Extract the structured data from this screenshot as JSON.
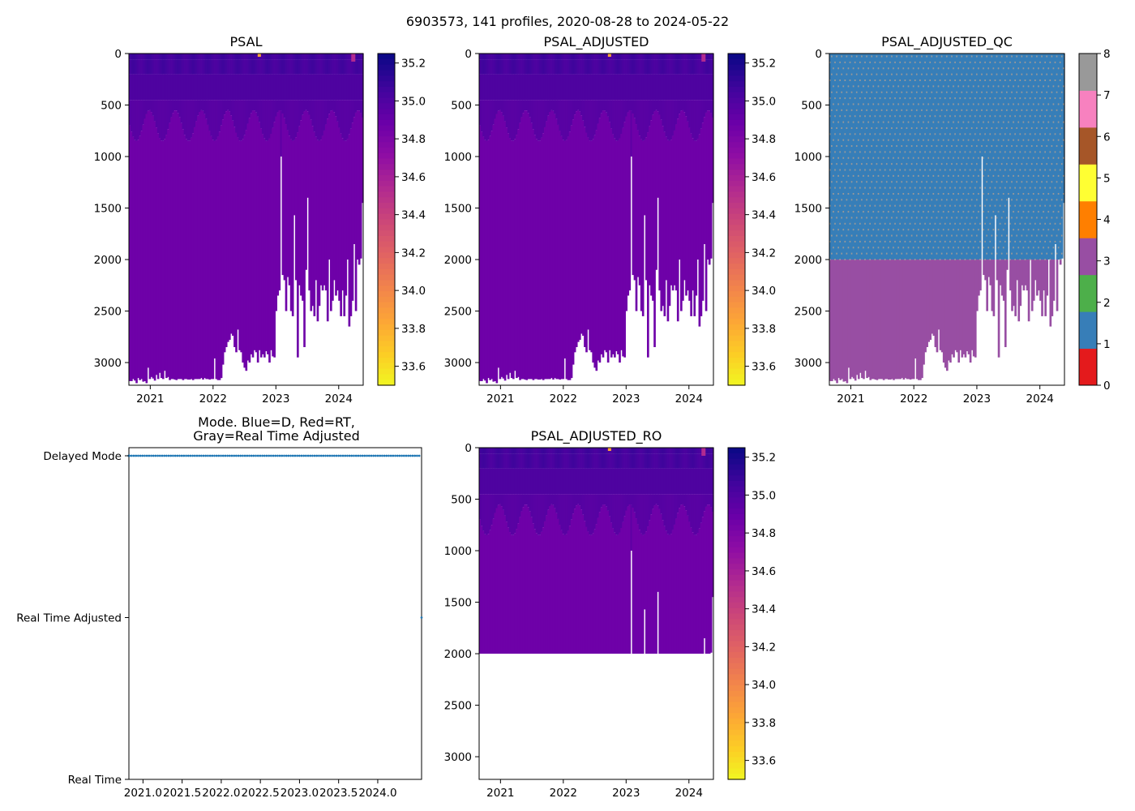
{
  "figure": {
    "suptitle": "6903573, 141 profiles, 2020-08-28 to 2024-05-22"
  },
  "colors": {
    "plasma_r": [
      "#0d0887",
      "#41049d",
      "#6a00a8",
      "#8f0da4",
      "#b12a90",
      "#cc4778",
      "#e16462",
      "#f2844b",
      "#fca636",
      "#fcce25",
      "#f0f921"
    ],
    "qc_classes": [
      "#e41a1c",
      "#377eb8",
      "#4daf4a",
      "#984ea3",
      "#ff7f00",
      "#ffff33",
      "#a65628",
      "#f781bf",
      "#999999"
    ],
    "mode_dot": "#1f77b4"
  },
  "chart_data": [
    {
      "id": "psal",
      "type": "heatmap",
      "title": "PSAL",
      "xticks": [
        "2021",
        "2022",
        "2023",
        "2024"
      ],
      "xtick_years": [
        2021,
        2022,
        2023,
        2024
      ],
      "xlim": [
        2020.66,
        2024.39
      ],
      "yticks": [
        "0",
        "500",
        "1000",
        "1500",
        "2000",
        "2500",
        "3000"
      ],
      "ylim": [
        3220,
        0
      ],
      "colorbar": {
        "ticks": [
          "33.6",
          "33.8",
          "34.0",
          "34.2",
          "34.4",
          "34.6",
          "34.8",
          "35.0",
          "35.2"
        ],
        "range": [
          33.5,
          35.25
        ]
      },
      "profile_depth_profile": "full"
    },
    {
      "id": "psal_adjusted",
      "type": "heatmap",
      "title": "PSAL_ADJUSTED",
      "xticks": [
        "2021",
        "2022",
        "2023",
        "2024"
      ],
      "xtick_years": [
        2021,
        2022,
        2023,
        2024
      ],
      "xlim": [
        2020.66,
        2024.39
      ],
      "yticks": [
        "0",
        "500",
        "1000",
        "1500",
        "2000",
        "2500",
        "3000"
      ],
      "ylim": [
        3220,
        0
      ],
      "colorbar": {
        "ticks": [
          "33.6",
          "33.8",
          "34.0",
          "34.2",
          "34.4",
          "34.6",
          "34.8",
          "35.0",
          "35.2"
        ],
        "range": [
          33.5,
          35.25
        ]
      },
      "profile_depth_profile": "full"
    },
    {
      "id": "psal_adjusted_qc",
      "type": "heatmap",
      "title": "PSAL_ADJUSTED_QC",
      "xticks": [
        "2021",
        "2022",
        "2023",
        "2024"
      ],
      "xtick_years": [
        2021,
        2022,
        2023,
        2024
      ],
      "xlim": [
        2020.66,
        2024.39
      ],
      "yticks": [
        "0",
        "500",
        "1000",
        "1500",
        "2000",
        "2500",
        "3000"
      ],
      "ylim": [
        3220,
        0
      ],
      "colorbar": {
        "ticks": [
          "0",
          "1",
          "2",
          "3",
          "4",
          "5",
          "6",
          "7",
          "8"
        ],
        "range": [
          0,
          8
        ]
      },
      "qc_split_depth": 2000,
      "qc_above": 1,
      "qc_below": 3,
      "qc_speckle": 8
    },
    {
      "id": "mode",
      "type": "scatter",
      "title": "Mode. Blue=D, Red=RT,\nGray=Real Time Adjusted",
      "title_lines": [
        "Mode. Blue=D, Red=RT,",
        "Gray=Real Time Adjusted"
      ],
      "xticks": [
        "2021.0",
        "2021.5",
        "2022.0",
        "2022.5",
        "2023.0",
        "2023.5",
        "2024.0"
      ],
      "xtick_values": [
        2021.0,
        2021.5,
        2022.0,
        2022.5,
        2023.0,
        2023.5,
        2024.0
      ],
      "xlim": [
        2020.82,
        2024.56
      ],
      "yticks": [
        "Delayed Mode",
        "Real Time Adjusted",
        "Real Time"
      ],
      "ylevels": [
        1,
        0.5,
        0
      ],
      "delayed_range": [
        2020.66,
        2024.53
      ],
      "delayed_count": 140,
      "rt_adjusted_point": 2024.56
    },
    {
      "id": "psal_adjusted_ro",
      "type": "heatmap",
      "title": "PSAL_ADJUSTED_RO",
      "xticks": [
        "2021",
        "2022",
        "2023",
        "2024"
      ],
      "xtick_years": [
        2021,
        2022,
        2023,
        2024
      ],
      "xlim": [
        2020.66,
        2024.39
      ],
      "yticks": [
        "0",
        "500",
        "1000",
        "1500",
        "2000",
        "2500",
        "3000"
      ],
      "ylim": [
        3220,
        0
      ],
      "colorbar": {
        "ticks": [
          "33.6",
          "33.8",
          "34.0",
          "34.2",
          "34.4",
          "34.6",
          "34.8",
          "35.0",
          "35.2"
        ],
        "range": [
          33.5,
          35.25
        ]
      },
      "max_depth": 2000,
      "profile_depth_profile": "capped"
    }
  ],
  "profiles": {
    "count": 141,
    "start": 2020.66,
    "end": 2024.39,
    "max_depth": [
      3180,
      3180,
      3160,
      3175,
      3200,
      3150,
      3170,
      3160,
      3185,
      3180,
      3200,
      3050,
      3160,
      3140,
      3155,
      3175,
      3120,
      3160,
      3100,
      3150,
      3160,
      3080,
      3150,
      3140,
      3170,
      3160,
      3160,
      3165,
      3170,
      3160,
      3160,
      3160,
      3170,
      3160,
      3160,
      3165,
      3165,
      3160,
      3170,
      3160,
      3160,
      3160,
      3160,
      3150,
      3165,
      3150,
      3160,
      3160,
      3165,
      3160,
      3160,
      2960,
      3160,
      3170,
      3170,
      3150,
      3020,
      2900,
      2850,
      2800,
      2780,
      2720,
      2740,
      2850,
      2900,
      2680,
      2880,
      2900,
      3000,
      3050,
      3080,
      2980,
      3000,
      2920,
      2950,
      2880,
      2900,
      3000,
      2880,
      2950,
      2920,
      2950,
      2890,
      2920,
      3000,
      2880,
      2940,
      2950,
      2500,
      2350,
      2300,
      1000,
      2150,
      2200,
      2500,
      2170,
      2250,
      2500,
      2550,
      1570,
      2200,
      2950,
      2250,
      2350,
      2400,
      2850,
      2100,
      1400,
      2300,
      2500,
      2450,
      2550,
      2200,
      2600,
      2450,
      2250,
      2300,
      2250,
      2300,
      2600,
      2000,
      2500,
      2400,
      2200,
      2350,
      2300,
      2400,
      2550,
      2300,
      2550,
      2350,
      2000,
      2650,
      2550,
      2400,
      1850,
      2500,
      2000,
      2050,
      1990,
      1450
    ]
  }
}
